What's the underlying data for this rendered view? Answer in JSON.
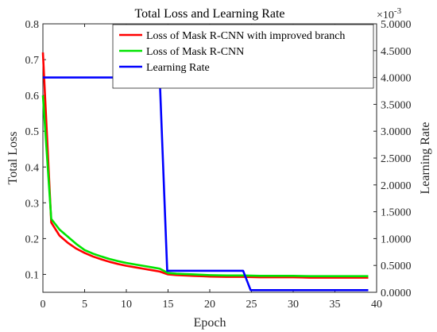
{
  "chart_data": {
    "type": "line",
    "title": "Total Loss and Learning Rate",
    "xlabel": "Epoch",
    "ylabel_left": "Total Loss",
    "ylabel_right": "Learning Rate",
    "right_axis_exponent": "×10",
    "right_axis_exponent_power": "-3",
    "xlim": [
      0,
      40
    ],
    "ylim_left": [
      0.05,
      0.8
    ],
    "ylim_right": [
      0,
      5
    ],
    "x_ticks": [
      "0",
      "5",
      "10",
      "15",
      "20",
      "25",
      "30",
      "35",
      "40"
    ],
    "y_left_ticks": [
      "0.1",
      "0.2",
      "0.3",
      "0.4",
      "0.5",
      "0.6",
      "0.7",
      "0.8"
    ],
    "y_right_ticks": [
      "0.0000",
      "0.5000",
      "1.0000",
      "1.5000",
      "2.0000",
      "2.5000",
      "3.0000",
      "3.5000",
      "4.0000",
      "4.5000",
      "5.0000"
    ],
    "legend_position": "top-right",
    "grid": false,
    "series": [
      {
        "name": "Loss of Mask R-CNN with improved branch",
        "axis": "left",
        "color": "#ff0000",
        "x": [
          0,
          1,
          2,
          3,
          4,
          5,
          6,
          7,
          8,
          9,
          10,
          11,
          12,
          13,
          14,
          15,
          16,
          17,
          18,
          19,
          20,
          22,
          24,
          26,
          28,
          30,
          32,
          34,
          36,
          39
        ],
        "y": [
          0.72,
          0.245,
          0.208,
          0.188,
          0.172,
          0.16,
          0.15,
          0.142,
          0.135,
          0.129,
          0.124,
          0.12,
          0.116,
          0.112,
          0.108,
          0.1,
          0.098,
          0.097,
          0.096,
          0.095,
          0.094,
          0.093,
          0.093,
          0.092,
          0.092,
          0.092,
          0.091,
          0.091,
          0.091,
          0.091
        ]
      },
      {
        "name": "Loss of Mask R-CNN",
        "axis": "left",
        "color": "#00e400",
        "x": [
          0,
          1,
          2,
          3,
          4,
          5,
          6,
          7,
          8,
          9,
          10,
          11,
          12,
          13,
          14,
          15,
          16,
          17,
          18,
          19,
          20,
          22,
          24,
          26,
          28,
          30,
          32,
          34,
          36,
          39
        ],
        "y": [
          0.6,
          0.255,
          0.225,
          0.205,
          0.185,
          0.168,
          0.158,
          0.15,
          0.143,
          0.137,
          0.132,
          0.128,
          0.124,
          0.12,
          0.116,
          0.104,
          0.102,
          0.101,
          0.1,
          0.099,
          0.098,
          0.097,
          0.097,
          0.096,
          0.096,
          0.096,
          0.095,
          0.095,
          0.095,
          0.095
        ]
      },
      {
        "name": "Learning Rate",
        "axis": "right",
        "color": "#0000ff",
        "x": [
          0,
          14,
          14.9,
          24,
          24.9,
          39
        ],
        "y": [
          4.0,
          4.0,
          0.4,
          0.4,
          0.04,
          0.04
        ]
      }
    ]
  }
}
